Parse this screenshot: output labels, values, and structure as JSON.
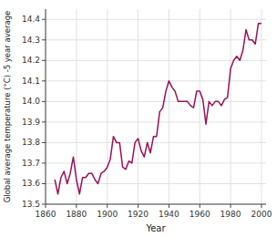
{
  "chart_data": {
    "type": "line",
    "x": [
      1866,
      1868,
      1870,
      1872,
      1874,
      1876,
      1878,
      1880,
      1882,
      1884,
      1886,
      1888,
      1890,
      1892,
      1894,
      1896,
      1898,
      1900,
      1902,
      1904,
      1906,
      1908,
      1910,
      1912,
      1914,
      1916,
      1918,
      1920,
      1922,
      1924,
      1926,
      1928,
      1930,
      1932,
      1934,
      1936,
      1938,
      1940,
      1942,
      1944,
      1946,
      1948,
      1950,
      1952,
      1954,
      1956,
      1958,
      1960,
      1962,
      1964,
      1966,
      1968,
      1970,
      1972,
      1974,
      1976,
      1978,
      1980,
      1982,
      1984,
      1986,
      1988,
      1990,
      1992,
      1994,
      1996,
      1998,
      2000
    ],
    "values": [
      13.62,
      13.55,
      13.63,
      13.66,
      13.6,
      13.65,
      13.73,
      13.62,
      13.55,
      13.63,
      13.63,
      13.65,
      13.65,
      13.62,
      13.6,
      13.65,
      13.66,
      13.68,
      13.72,
      13.83,
      13.8,
      13.8,
      13.68,
      13.67,
      13.71,
      13.7,
      13.8,
      13.82,
      13.76,
      13.73,
      13.8,
      13.75,
      13.83,
      13.83,
      13.95,
      13.97,
      14.05,
      14.1,
      14.07,
      14.05,
      14.0,
      14.0,
      14.0,
      14.0,
      13.98,
      13.97,
      14.05,
      14.05,
      14.01,
      13.89,
      14.0,
      13.98,
      14.0,
      14.0,
      13.98,
      14.01,
      14.02,
      14.16,
      14.2,
      14.22,
      14.2,
      14.25,
      14.35,
      14.3,
      14.3,
      14.28,
      14.38,
      14.38
    ],
    "color": "#9b1155",
    "xlabel": "Year",
    "ylabel": "Global average temperature (°C) -5 year average",
    "xlim": [
      1860,
      2003
    ],
    "ylim": [
      13.5,
      14.45
    ],
    "xticks": [
      1860,
      1880,
      1900,
      1920,
      1940,
      1960,
      1980,
      2000
    ],
    "yticks": [
      13.5,
      13.6,
      13.7,
      13.8,
      13.9,
      {
        "value": 14.0,
        "label": "14.0"
      },
      14.1,
      14.2,
      14.3,
      14.4
    ],
    "grid": true
  }
}
